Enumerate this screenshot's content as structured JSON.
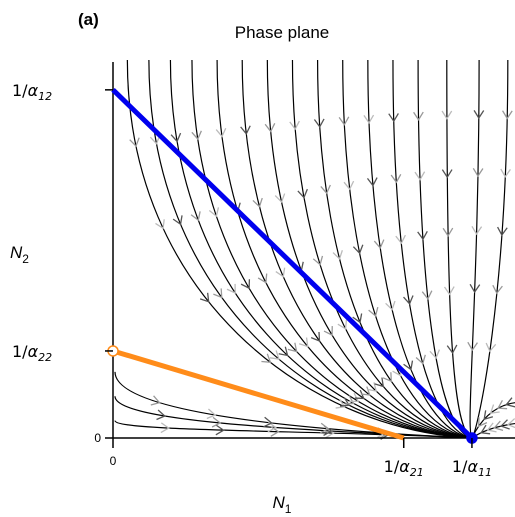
{
  "panel_label": "(a)",
  "chart_data": {
    "type": "line",
    "title": "Phase plane",
    "xlabel": {
      "base": "N",
      "sub": "1"
    },
    "ylabel": {
      "base": "N",
      "sub": "2"
    },
    "xlim": [
      0,
      1.12
    ],
    "ylim": [
      0,
      1.08
    ],
    "x_ticks": [
      {
        "value": 0,
        "base": "0",
        "sub": ""
      },
      {
        "value": 0.81,
        "base": "1/α",
        "sub": "21"
      },
      {
        "value": 1.0,
        "base": "1/α",
        "sub": "11"
      }
    ],
    "y_ticks": [
      {
        "value": 0,
        "base": "0",
        "sub": ""
      },
      {
        "value": 0.25,
        "base": "1/α",
        "sub": "22"
      },
      {
        "value": 1.0,
        "base": "1/α",
        "sub": "12"
      }
    ],
    "series": [
      {
        "color": "#0000ee",
        "x": [
          0,
          1.0
        ],
        "y": [
          1.0,
          0
        ]
      },
      {
        "color": "#ff8c1a",
        "x": [
          0,
          0.81
        ],
        "y": [
          0.25,
          0
        ]
      }
    ],
    "equilibria": [
      {
        "x": 0,
        "y": 0.25,
        "fill": "#ffffff",
        "stroke": "#ff8c1a"
      },
      {
        "x": 1.0,
        "y": 0,
        "fill": "#0000ee",
        "stroke": "#0000ee"
      }
    ],
    "stable_point": {
      "x": 1.0,
      "y": 0
    },
    "trajectory_color": "#000000",
    "arrow_colors": [
      "#555555",
      "#999999",
      "#bbbbbb"
    ]
  }
}
